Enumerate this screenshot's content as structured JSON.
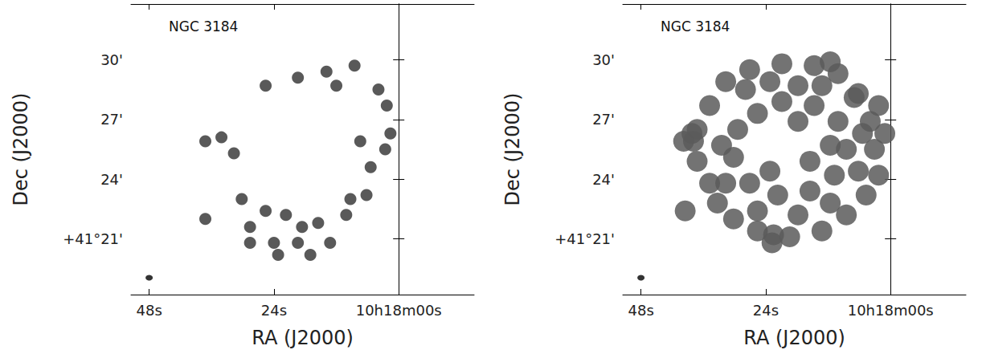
{
  "chart_data": [
    {
      "type": "scatter",
      "title": "NGC 3184",
      "x_label": "RA (J2000)",
      "y_label": "Dec (J2000)",
      "xlim": [
        51.5,
        -14.5
      ],
      "ylim": [
        18.2,
        32.8
      ],
      "xticks": [
        {
          "value": 48,
          "label": "48s"
        },
        {
          "value": 24,
          "label": "24s"
        },
        {
          "value": 0,
          "label": "10h18m00s"
        }
      ],
      "yticks": [
        {
          "value": 21,
          "label": "+41°21'"
        },
        {
          "value": 24,
          "label": "24'"
        },
        {
          "value": 27,
          "label": "27'"
        },
        {
          "value": 30,
          "label": "30'"
        }
      ],
      "grid": false,
      "marker": "circle",
      "color": "#3c3c3c",
      "x": [
        25.6,
        19.4,
        13.9,
        12.0,
        8.5,
        3.9,
        2.3,
        1.6,
        2.6,
        5.4,
        7.4,
        37.2,
        34.1,
        31.7,
        37.2,
        25.6,
        21.7,
        18.6,
        19.4,
        15.5,
        13.2,
        9.3,
        6.2,
        10.1,
        30.2,
        28.6,
        24.0,
        23.2,
        17.0,
        28.6
      ],
      "y": [
        28.7,
        29.1,
        29.4,
        28.7,
        29.7,
        28.5,
        27.7,
        26.3,
        25.5,
        24.6,
        25.9,
        25.9,
        26.1,
        25.3,
        22.0,
        22.4,
        22.2,
        21.6,
        20.8,
        21.8,
        20.8,
        23.0,
        23.2,
        22.2,
        23.0,
        21.6,
        20.8,
        20.2,
        20.2,
        20.8
      ],
      "beam": {
        "x": 48,
        "y": 19.05
      }
    },
    {
      "type": "scatter",
      "title": "NGC 3184",
      "x_label": "RA (J2000)",
      "y_label": "Dec (J2000)",
      "xlim": [
        51.5,
        -14.5
      ],
      "ylim": [
        18.2,
        32.8
      ],
      "xticks": [
        {
          "value": 48,
          "label": "48s"
        },
        {
          "value": 24,
          "label": "24s"
        },
        {
          "value": 0,
          "label": "10h18m00s"
        }
      ],
      "yticks": [
        {
          "value": 21,
          "label": "+41°21'"
        },
        {
          "value": 24,
          "label": "24'"
        },
        {
          "value": 27,
          "label": "27'"
        },
        {
          "value": 30,
          "label": "30'"
        }
      ],
      "grid": false,
      "marker": "circle",
      "color": "#5a5a5a",
      "x": [
        3.1,
        3.9,
        6.2,
        10.1,
        14.7,
        20.9,
        27.1,
        31.7,
        34.8,
        37.2,
        37.9,
        37.2,
        33.3,
        30.2,
        25.6,
        19.4,
        13.2,
        8.5,
        4.7,
        2.3,
        11.6,
        2.3,
        1.1,
        39.8,
        22.5,
        34.8,
        14.7,
        10.1,
        8.5,
        10.8,
        15.5,
        21.7,
        27.1,
        30.2,
        29.4,
        25.6,
        20.9,
        27.9,
        23.2,
        17.8,
        13.2,
        32.5,
        31.7,
        25.6,
        17.8,
        11.6,
        6.2,
        5.4,
        7.0,
        17.8,
        11.6,
        23.2,
        15.5,
        39.5,
        38.2,
        22.8
      ],
      "y": [
        25.5,
        26.9,
        28.3,
        29.3,
        29.7,
        29.8,
        29.5,
        28.9,
        27.7,
        26.5,
        25.9,
        24.9,
        22.8,
        22.0,
        21.4,
        21.1,
        21.4,
        22.2,
        23.2,
        24.2,
        29.9,
        27.7,
        26.3,
        25.9,
        21.2,
        23.8,
        27.7,
        26.9,
        25.5,
        24.2,
        23.4,
        23.2,
        23.8,
        25.1,
        26.5,
        27.3,
        27.9,
        28.5,
        28.9,
        28.7,
        28.7,
        25.7,
        23.8,
        22.4,
        22.2,
        22.8,
        24.4,
        26.3,
        28.1,
        26.9,
        25.7,
        24.4,
        24.9,
        22.4,
        26.3,
        20.8
      ],
      "beam": {
        "x": 48,
        "y": 19.05
      }
    }
  ]
}
